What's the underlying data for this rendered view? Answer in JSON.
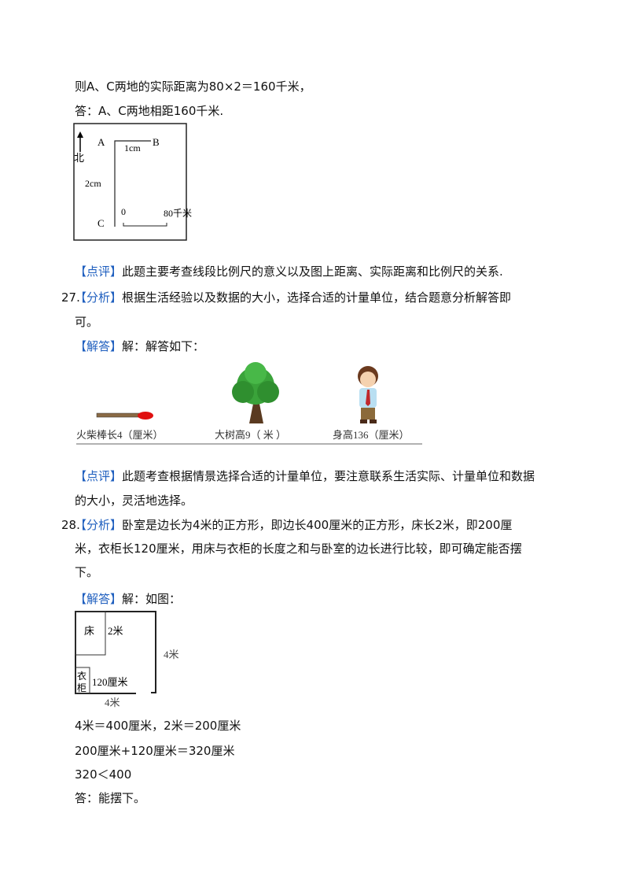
{
  "prev": {
    "line1": "则A、C两地的实际距离为80×2＝160千米，",
    "line2": "答：A、C两地相距160千米."
  },
  "map_figure": {
    "a": "A",
    "b": "B",
    "c": "C",
    "north": "北",
    "ab": "1cm",
    "ac": "2cm",
    "zero": "0",
    "scale": "80千米"
  },
  "review1": {
    "tag": "【点评】",
    "text": "此题主要考查线段比例尺的意义以及图上距离、实际距离和比例尺的关系."
  },
  "q27": {
    "num": "27.",
    "analysis_tag": "【分析】",
    "analysis_1": "根据生活经验以及数据的大小，选择合适的计量单位，结合题意分析解答即",
    "analysis_2": "可。",
    "answer_tag": "【解答】",
    "answer": "解：解答如下：",
    "figure": {
      "match": "火柴棒长4（厘米）",
      "tree": "大树高9（  米  ）",
      "person": "身高136（厘米）"
    },
    "review_tag": "【点评】",
    "review_1": "此题考查根据情景选择合适的计量单位，要注意联系生活实际、计量单位和数据",
    "review_2": "的大小，灵活地选择。"
  },
  "q28": {
    "num": "28.",
    "analysis_tag": "【分析】",
    "analysis_1": "卧室是边长为4米的正方形，即边长400厘米的正方形，床长2米，即200厘",
    "analysis_2": "米，衣柜长120厘米，用床与衣柜的长度之和与卧室的边长进行比较，即可确定能否摆",
    "analysis_3": "下。",
    "answer_tag": "【解答】",
    "answer": "解：如图：",
    "figure": {
      "bed": "床",
      "bed_len": "2米",
      "wardrobe_1": "衣",
      "wardrobe_2": "柜",
      "wardrobe_len": "120厘米",
      "side_right": "4米",
      "side_bottom": "4米"
    },
    "calc": [
      "4米＝400厘米，2米＝200厘米",
      "200厘米+120厘米＝320厘米",
      "320＜400",
      "答：能摆下。"
    ]
  }
}
